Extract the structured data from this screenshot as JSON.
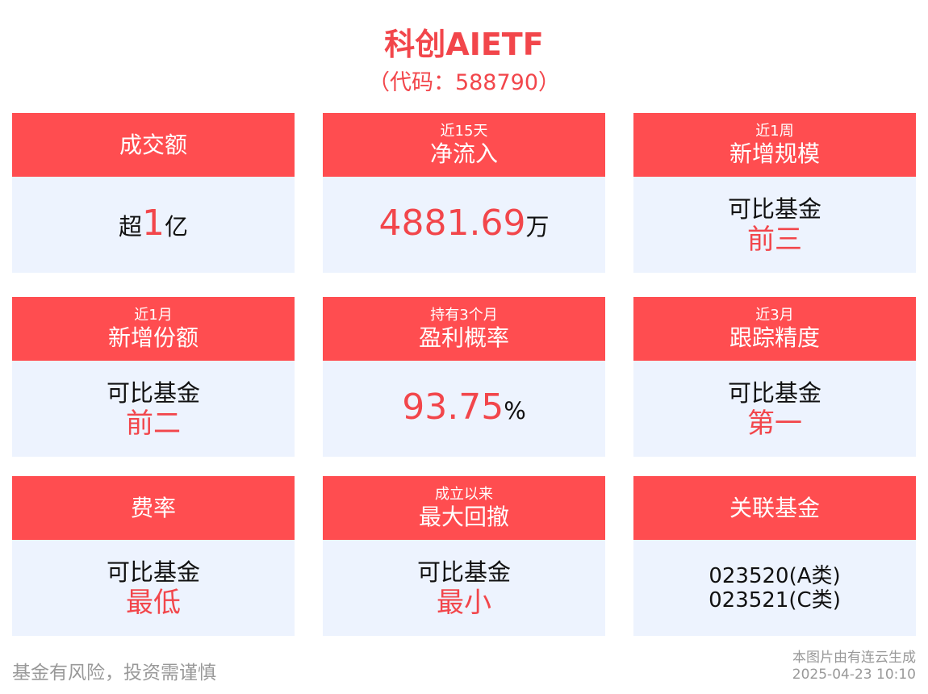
{
  "header": {
    "title": "科创AIETF",
    "code": "（代码：588790）"
  },
  "cards": [
    {
      "sub": "",
      "title": "成交额",
      "prefix": "超",
      "value": "1",
      "suffix": "亿"
    },
    {
      "sub": "近15天",
      "title": "净流入",
      "value": "4881.69",
      "suffix": "万"
    },
    {
      "sub": "近1周",
      "title": "新增规模",
      "line1": "可比基金",
      "line2": "前三"
    },
    {
      "sub": "近1月",
      "title": "新增份额",
      "line1": "可比基金",
      "line2": "前二"
    },
    {
      "sub": "持有3个月",
      "title": "盈利概率",
      "value": "93.75",
      "suffix": "%"
    },
    {
      "sub": "近3月",
      "title": "跟踪精度",
      "line1": "可比基金",
      "line2": "第一"
    },
    {
      "sub": "",
      "title": "费率",
      "line1": "可比基金",
      "line2": "最低"
    },
    {
      "sub": "成立以来",
      "title": "最大回撤",
      "line1": "可比基金",
      "line2": "最小"
    },
    {
      "sub": "",
      "title": "关联基金",
      "funds": [
        "023520(A类)",
        "023521(C类)"
      ]
    }
  ],
  "footer": {
    "disclaimer": "基金有风险，投资需谨慎",
    "source": "本图片由有连云生成",
    "timestamp": "2025-04-23 10:10"
  },
  "colors": {
    "accent": "#ff4d50",
    "card_bg": "#edf3fe",
    "text_red": "#f2464b"
  }
}
